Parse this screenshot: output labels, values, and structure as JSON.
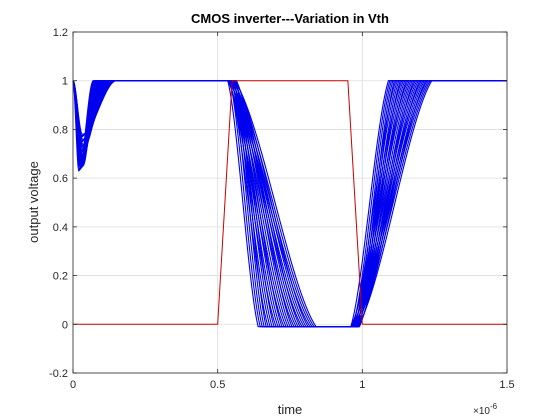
{
  "chart_data": {
    "type": "line",
    "title": "CMOS inverter---Variation in Vth",
    "xlabel": "time",
    "ylabel": "output voltage",
    "x_exponent_label": "×10",
    "x_exponent_power": "-6",
    "xlim": [
      0,
      1.5
    ],
    "ylim": [
      -0.2,
      1.2
    ],
    "x_ticks": [
      0,
      0.5,
      1,
      1.5
    ],
    "x_tick_labels": [
      "0",
      "0.5",
      "1",
      "1.5"
    ],
    "y_ticks": [
      -0.2,
      0,
      0.2,
      0.4,
      0.6,
      0.8,
      1,
      1.2
    ],
    "y_tick_labels": [
      "-0.2",
      "0",
      "0.2",
      "0.4",
      "0.6",
      "0.8",
      "1",
      "1.2"
    ],
    "grid": true,
    "colors": {
      "input": "#cc0000",
      "output": "#0000ee",
      "grid": "#dcdcdc",
      "axis": "#262626"
    },
    "input_signal": {
      "x": [
        0,
        0.5,
        0.55,
        0.95,
        1.0,
        1.5
      ],
      "y": [
        0,
        0,
        1,
        1,
        0,
        0
      ]
    },
    "output_family": {
      "count": 30,
      "start_dip": {
        "x_start": 0.0,
        "min_x_range": [
          0.02,
          0.035
        ],
        "min_y_range": [
          0.63,
          0.78
        ],
        "recover_x_range": [
          0.07,
          0.15
        ]
      },
      "fall": {
        "x_start_range": [
          0.535,
          0.565
        ],
        "x_end_range": [
          0.64,
          0.84
        ],
        "low_y": -0.01
      },
      "rise": {
        "x_start_range": [
          0.96,
          0.99
        ],
        "x_end_range": [
          1.09,
          1.24
        ],
        "high_y": 1.0
      }
    }
  }
}
